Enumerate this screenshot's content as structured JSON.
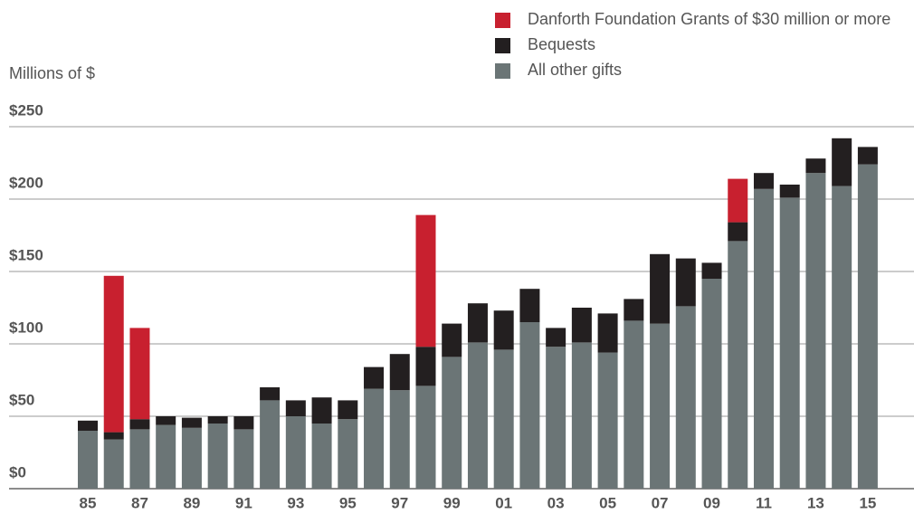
{
  "chart_data": {
    "type": "stacked_bar",
    "y_axis_label": "Millions of $",
    "categories": [
      "85",
      null,
      "87",
      null,
      "89",
      null,
      "91",
      null,
      "93",
      null,
      "95",
      null,
      "97",
      null,
      "99",
      null,
      "01",
      null,
      "03",
      null,
      "05",
      null,
      "07",
      null,
      "09",
      null,
      "11",
      null,
      "13",
      null,
      "15"
    ],
    "series": [
      {
        "name": "All other gifts",
        "color": "#6b7576",
        "values": [
          40,
          34,
          41,
          44,
          42,
          45,
          41,
          61,
          50,
          45,
          48,
          69,
          68,
          71,
          91,
          101,
          96,
          115,
          98,
          101,
          94,
          116,
          114,
          126,
          145,
          171,
          207,
          201,
          218,
          209,
          224
        ]
      },
      {
        "name": "Bequests",
        "color": "#231f20",
        "values": [
          7,
          5,
          7,
          6,
          7,
          5,
          9,
          9,
          11,
          18,
          13,
          15,
          25,
          27,
          23,
          27,
          27,
          23,
          13,
          24,
          27,
          15,
          48,
          33,
          11,
          13,
          11,
          9,
          10,
          33,
          12
        ]
      },
      {
        "name": "Danforth Foundation Grants of $30 million or more",
        "color": "#c8202f",
        "values": [
          null,
          108,
          63,
          null,
          null,
          null,
          null,
          null,
          null,
          null,
          null,
          null,
          null,
          91,
          null,
          null,
          null,
          null,
          null,
          null,
          null,
          null,
          null,
          null,
          null,
          30,
          null,
          null,
          null,
          null,
          null
        ]
      }
    ],
    "ylim": [
      0,
      250
    ],
    "yticks": [
      {
        "value": 0,
        "label": "$0"
      },
      {
        "value": 50,
        "label": "$50"
      },
      {
        "value": 100,
        "label": "$100"
      },
      {
        "value": 150,
        "label": "$150"
      },
      {
        "value": 200,
        "label": "$200"
      },
      {
        "value": 250,
        "label": "$250"
      }
    ],
    "grid": true,
    "legend": "top-right"
  }
}
